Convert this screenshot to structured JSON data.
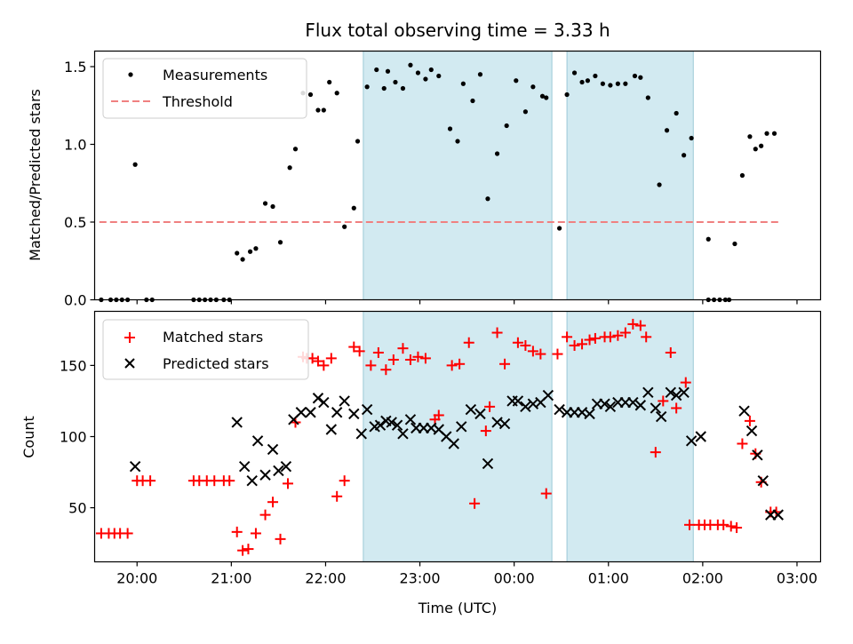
{
  "chart_data": [
    {
      "type": "scatter",
      "title": "Flux total observing time = 3.33 h",
      "xlabel": "",
      "ylabel": "Matched/Predicted stars",
      "xlim": [
        19.55,
        27.25
      ],
      "ylim": [
        0.0,
        1.6
      ],
      "yticks": [
        0.0,
        0.5,
        1.0,
        1.5
      ],
      "ytick_labels": [
        "0.0",
        "0.5",
        "1.0",
        "1.5"
      ],
      "xticks": [
        20,
        21,
        22,
        23,
        24,
        25,
        26,
        27
      ],
      "xtick_labels": [
        "",
        "",
        "",
        "",
        "",
        "",
        "",
        ""
      ],
      "shaded_spans": [
        [
          22.4,
          24.4
        ],
        [
          24.56,
          25.9
        ]
      ],
      "shade_color": "#add8e6",
      "legend_position": "top-left",
      "threshold": {
        "name": "Threshold",
        "y": 0.5,
        "x_range": [
          19.6,
          26.82
        ],
        "color": "#f08080",
        "style": "dashed"
      },
      "series": [
        {
          "name": "Measurements",
          "color": "#000000",
          "marker": "dot",
          "x": [
            19.62,
            19.72,
            19.78,
            19.84,
            19.9,
            19.98,
            20.1,
            20.16,
            20.6,
            20.66,
            20.72,
            20.78,
            20.84,
            20.92,
            20.98,
            21.06,
            21.12,
            21.2,
            21.26,
            21.36,
            21.44,
            21.52,
            21.62,
            21.68,
            21.76,
            21.84,
            21.92,
            21.98,
            22.04,
            22.12,
            22.2,
            22.3,
            22.34,
            22.44,
            22.54,
            22.62,
            22.66,
            22.74,
            22.82,
            22.9,
            22.98,
            23.06,
            23.12,
            23.2,
            23.32,
            23.4,
            23.46,
            23.56,
            23.64,
            23.72,
            23.82,
            23.92,
            24.02,
            24.12,
            24.2,
            24.3,
            24.34,
            24.48,
            24.56,
            24.64,
            24.72,
            24.78,
            24.86,
            24.94,
            25.02,
            25.1,
            25.18,
            25.28,
            25.34,
            25.42,
            25.54,
            25.62,
            25.72,
            25.8,
            25.88,
            26.06,
            26.06,
            26.12,
            26.18,
            26.24,
            26.28,
            26.34,
            26.42,
            26.5,
            26.56,
            26.62,
            26.68,
            26.76
          ],
          "y": [
            0.0,
            0.0,
            0.0,
            0.0,
            0.0,
            0.87,
            0.0,
            0.0,
            0.0,
            0.0,
            0.0,
            0.0,
            0.0,
            0.0,
            0.0,
            0.3,
            0.26,
            0.31,
            0.33,
            0.62,
            0.6,
            0.37,
            0.85,
            0.97,
            1.33,
            1.32,
            1.22,
            1.22,
            1.4,
            1.33,
            0.47,
            0.59,
            1.02,
            1.37,
            1.48,
            1.36,
            1.47,
            1.4,
            1.36,
            1.51,
            1.46,
            1.42,
            1.48,
            1.44,
            1.1,
            1.02,
            1.39,
            1.28,
            1.45,
            0.65,
            0.94,
            1.12,
            1.41,
            1.21,
            1.37,
            1.31,
            1.3,
            0.46,
            1.32,
            1.46,
            1.4,
            1.41,
            1.44,
            1.39,
            1.38,
            1.39,
            1.39,
            1.44,
            1.43,
            1.3,
            0.74,
            1.09,
            1.2,
            0.93,
            1.04,
            0.39,
            0.0,
            0.0,
            0.0,
            0.0,
            0.0,
            0.36,
            0.8,
            1.05,
            0.97,
            0.99,
            1.07,
            1.07
          ]
        }
      ]
    },
    {
      "type": "scatter",
      "title": "",
      "xlabel": "Time (UTC)",
      "ylabel": "Count",
      "xlim": [
        19.55,
        27.25
      ],
      "ylim": [
        12,
        188
      ],
      "yticks": [
        50,
        100,
        150
      ],
      "ytick_labels": [
        "50",
        "100",
        "150"
      ],
      "xticks": [
        20,
        21,
        22,
        23,
        24,
        25,
        26,
        27
      ],
      "xtick_labels": [
        "20:00",
        "21:00",
        "22:00",
        "23:00",
        "00:00",
        "01:00",
        "02:00",
        "03:00"
      ],
      "shaded_spans": [
        [
          22.4,
          24.4
        ],
        [
          24.56,
          25.9
        ]
      ],
      "shade_color": "#add8e6",
      "legend_position": "top-left",
      "series": [
        {
          "name": "Matched stars",
          "color": "#ff0000",
          "marker": "plus",
          "x": [
            19.62,
            19.7,
            19.76,
            19.82,
            19.9,
            20.0,
            20.06,
            20.14,
            20.6,
            20.66,
            20.74,
            20.82,
            20.92,
            20.98,
            21.06,
            21.12,
            21.18,
            21.26,
            21.36,
            21.44,
            21.52,
            21.6,
            21.68,
            21.76,
            21.8,
            21.86,
            21.92,
            21.98,
            22.06,
            22.12,
            22.2,
            22.3,
            22.36,
            22.48,
            22.56,
            22.64,
            22.72,
            22.82,
            22.9,
            22.98,
            23.06,
            23.16,
            23.2,
            23.34,
            23.42,
            23.52,
            23.58,
            23.7,
            23.74,
            23.82,
            23.9,
            24.04,
            24.12,
            24.2,
            24.28,
            24.34,
            24.46,
            24.56,
            24.64,
            24.72,
            24.8,
            24.86,
            24.96,
            25.02,
            25.1,
            25.18,
            25.26,
            25.34,
            25.4,
            25.5,
            25.58,
            25.66,
            25.72,
            25.82,
            25.86,
            25.96,
            26.02,
            26.08,
            26.16,
            26.22,
            26.3,
            26.36,
            26.42,
            26.5,
            26.56,
            26.62,
            26.72,
            26.78
          ],
          "y": [
            32,
            32,
            32,
            32,
            32,
            69,
            69,
            69,
            69,
            69,
            69,
            69,
            69,
            69,
            33,
            20,
            21,
            32,
            45,
            54,
            28,
            67,
            110,
            156,
            155,
            155,
            153,
            150,
            155,
            58,
            69,
            163,
            160,
            150,
            159,
            147,
            154,
            162,
            154,
            156,
            155,
            112,
            115,
            150,
            151,
            166,
            53,
            104,
            121,
            173,
            151,
            166,
            164,
            160,
            158,
            60,
            158,
            170,
            164,
            165,
            168,
            169,
            170,
            170,
            171,
            173,
            179,
            178,
            170,
            89,
            125,
            159,
            120,
            138,
            38,
            38,
            38,
            38,
            38,
            38,
            37,
            36,
            95,
            111,
            88,
            68,
            47,
            47
          ]
        },
        {
          "name": "Predicted stars",
          "color": "#000000",
          "marker": "x",
          "x": [
            19.98,
            21.06,
            21.14,
            21.22,
            21.28,
            21.36,
            21.44,
            21.5,
            21.58,
            21.66,
            21.74,
            21.84,
            21.92,
            21.98,
            22.06,
            22.12,
            22.2,
            22.3,
            22.38,
            22.44,
            22.52,
            22.58,
            22.64,
            22.7,
            22.76,
            22.82,
            22.9,
            22.96,
            23.04,
            23.12,
            23.2,
            23.28,
            23.36,
            23.44,
            23.54,
            23.64,
            23.72,
            23.82,
            23.9,
            23.98,
            24.04,
            24.12,
            24.2,
            24.28,
            24.36,
            24.48,
            24.56,
            24.64,
            24.72,
            24.8,
            24.88,
            24.96,
            25.02,
            25.1,
            25.18,
            25.26,
            25.34,
            25.42,
            25.5,
            25.56,
            25.66,
            25.72,
            25.8,
            25.88,
            25.98,
            26.44,
            26.52,
            26.58,
            26.64,
            26.72,
            26.8
          ],
          "y": [
            79,
            110,
            79,
            69,
            97,
            73,
            91,
            76,
            79,
            112,
            117,
            117,
            127,
            124,
            105,
            117,
            125,
            116,
            102,
            119,
            107,
            108,
            111,
            110,
            108,
            102,
            112,
            106,
            106,
            106,
            105,
            100,
            95,
            107,
            119,
            116,
            81,
            110,
            109,
            125,
            125,
            121,
            123,
            124,
            129,
            119,
            117,
            117,
            117,
            116,
            123,
            123,
            121,
            124,
            124,
            124,
            122,
            131,
            120,
            114,
            131,
            129,
            131,
            97,
            100,
            118,
            104,
            87,
            69,
            45,
            45
          ]
        }
      ]
    }
  ]
}
